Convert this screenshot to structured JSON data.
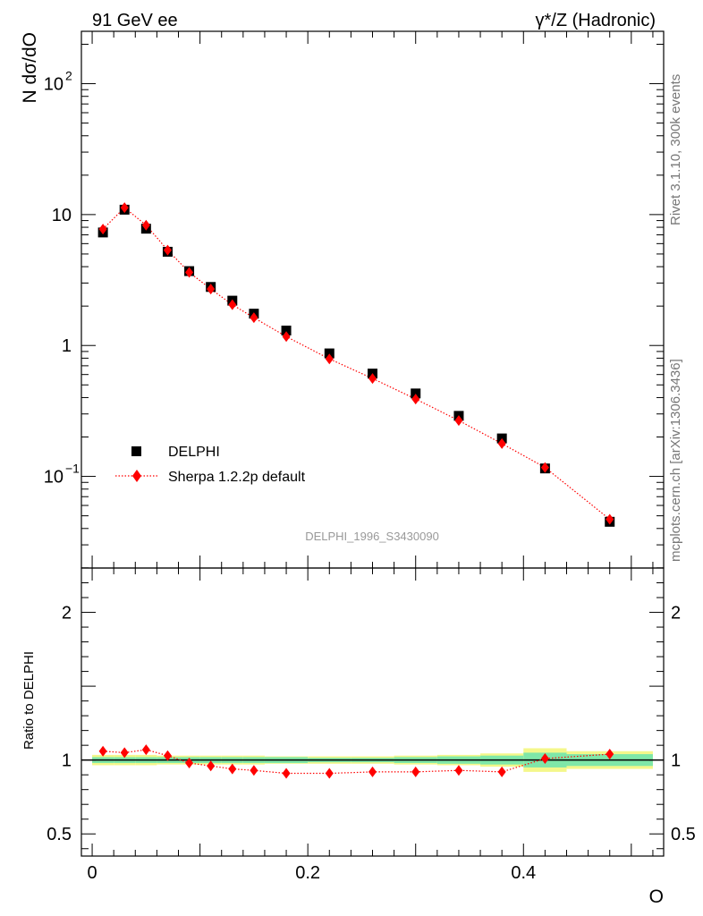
{
  "chart_data": {
    "type": "scatter",
    "energy_label": "91 GeV ee",
    "process_label": "γ*/Z (Hadronic)",
    "watermark": "DELPHI_1996_S3430090",
    "side_label_top": "Rivet 3.1.10,  300k events",
    "side_label_bottom": "mcplots.cern.ch [arXiv:1306.3436]",
    "xlabel": "O",
    "ylabel_main": "N dσ/dO",
    "ylabel_ratio": "Ratio to DELPHI",
    "xlim": [
      -0.01,
      0.53
    ],
    "ylim_main_log10": [
      -1.7,
      2.4
    ],
    "ylim_ratio": [
      0.35,
      2.3
    ],
    "x_ticks": [
      {
        "value": 0,
        "label": "0"
      },
      {
        "value": 0.2,
        "label": "0.2"
      },
      {
        "value": 0.4,
        "label": "0.4"
      }
    ],
    "y_ticks_main": [
      {
        "value": 0.1,
        "base": "10",
        "exp": "−1"
      },
      {
        "value": 1,
        "base": "1",
        "exp": ""
      },
      {
        "value": 10,
        "base": "10",
        "exp": ""
      },
      {
        "value": 100,
        "base": "10",
        "exp": "2"
      }
    ],
    "y_ticks_ratio": [
      {
        "value": 0.5,
        "label": "0.5"
      },
      {
        "value": 1,
        "label": "1"
      },
      {
        "value": 2,
        "label": "2"
      }
    ],
    "series": [
      {
        "name": "DELPHI",
        "color": "#000000",
        "marker": "square",
        "x": [
          0.01,
          0.03,
          0.05,
          0.07,
          0.09,
          0.11,
          0.13,
          0.15,
          0.18,
          0.22,
          0.26,
          0.3,
          0.34,
          0.38,
          0.42,
          0.48
        ],
        "y": [
          7.3,
          10.9,
          7.8,
          5.2,
          3.7,
          2.8,
          2.2,
          1.75,
          1.3,
          0.87,
          0.61,
          0.43,
          0.29,
          0.195,
          0.115,
          0.045
        ]
      },
      {
        "name": "Sherpa 1.2.2p default",
        "color": "#ff0000",
        "marker": "diamond",
        "x": [
          0.01,
          0.03,
          0.05,
          0.07,
          0.09,
          0.11,
          0.13,
          0.15,
          0.18,
          0.22,
          0.26,
          0.3,
          0.34,
          0.38,
          0.42,
          0.48
        ],
        "y": [
          7.75,
          11.3,
          8.3,
          5.35,
          3.62,
          2.7,
          2.05,
          1.63,
          1.17,
          0.79,
          0.56,
          0.39,
          0.267,
          0.178,
          0.117,
          0.047
        ]
      }
    ],
    "ratio": {
      "x": [
        0.01,
        0.03,
        0.05,
        0.07,
        0.09,
        0.11,
        0.13,
        0.15,
        0.18,
        0.22,
        0.26,
        0.3,
        0.34,
        0.38,
        0.42,
        0.48
      ],
      "y": [
        1.06,
        1.05,
        1.07,
        1.03,
        0.98,
        0.96,
        0.94,
        0.93,
        0.91,
        0.91,
        0.92,
        0.92,
        0.93,
        0.92,
        1.01,
        1.04
      ],
      "band_edges": [
        0,
        0.02,
        0.04,
        0.06,
        0.08,
        0.1,
        0.12,
        0.14,
        0.16,
        0.2,
        0.24,
        0.28,
        0.32,
        0.36,
        0.4,
        0.44,
        0.52
      ],
      "band_stat": [
        0.02,
        0.02,
        0.02,
        0.02,
        0.02,
        0.02,
        0.02,
        0.02,
        0.02,
        0.015,
        0.015,
        0.02,
        0.025,
        0.03,
        0.05,
        0.04
      ],
      "band_total": [
        0.035,
        0.035,
        0.035,
        0.03,
        0.03,
        0.03,
        0.03,
        0.03,
        0.025,
        0.025,
        0.025,
        0.03,
        0.035,
        0.045,
        0.08,
        0.06
      ],
      "stat_color": "#7fe7a8",
      "total_color": "#f4f78a"
    }
  }
}
